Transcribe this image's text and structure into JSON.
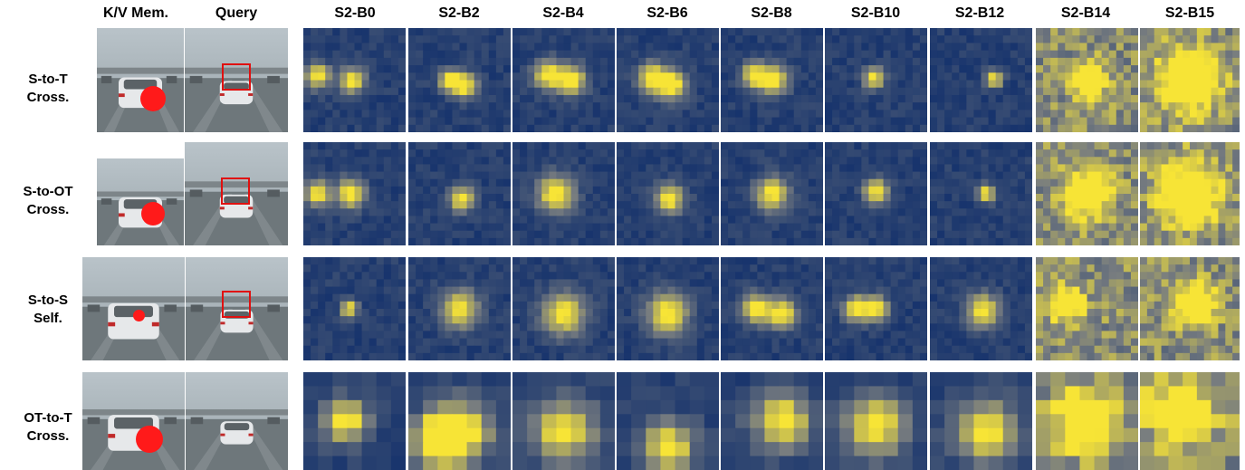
{
  "headers": {
    "kv_mem": "K/V Mem.",
    "query": "Query",
    "blocks": [
      "S2-B0",
      "S2-B2",
      "S2-B4",
      "S2-B6",
      "S2-B8",
      "S2-B10",
      "S2-B12",
      "S2-B14",
      "S2-B15"
    ]
  },
  "rows": [
    {
      "label": "S-to-T\nCross."
    },
    {
      "label": "S-to-OT\nCross."
    },
    {
      "label": "S-to-S\nSelf."
    },
    {
      "label": "OT-to-T\nCross."
    }
  ],
  "colors": {
    "heat_low": "#0d2c6b",
    "heat_high": "#f7e436",
    "query_box": "#e01010",
    "memory_dot": "#ff1a1a"
  }
}
